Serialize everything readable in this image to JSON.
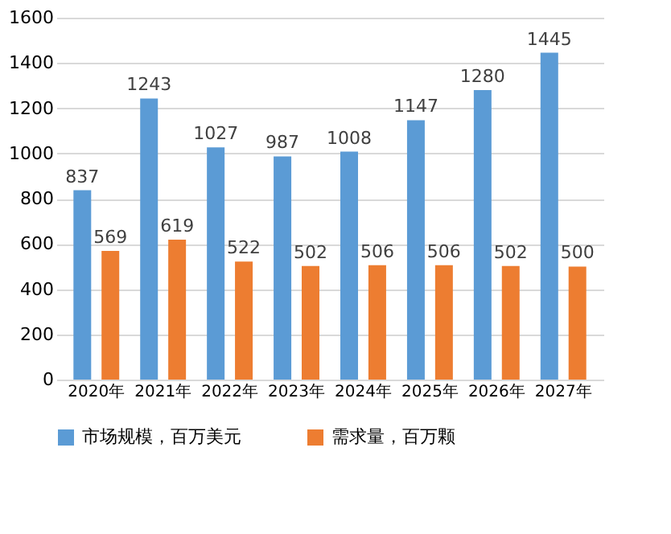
{
  "chart_data": {
    "type": "bar",
    "categories": [
      "2020年",
      "2021年",
      "2022年",
      "2023年",
      "2024年",
      "2025年",
      "2026年",
      "2027年"
    ],
    "series": [
      {
        "name": "市场规模，百万美元",
        "color": "#5b9bd5",
        "values": [
          837,
          1243,
          1027,
          987,
          1008,
          1147,
          1280,
          1445
        ]
      },
      {
        "name": "需求量，百万颗",
        "color": "#ed7d31",
        "values": [
          569,
          619,
          522,
          502,
          506,
          506,
          502,
          500
        ]
      }
    ],
    "ylim": [
      0,
      1600
    ],
    "yticks": [
      0,
      200,
      400,
      600,
      800,
      1000,
      1200,
      1400,
      1600
    ],
    "grid": "y",
    "legend": "bottom",
    "data_labels": true
  }
}
